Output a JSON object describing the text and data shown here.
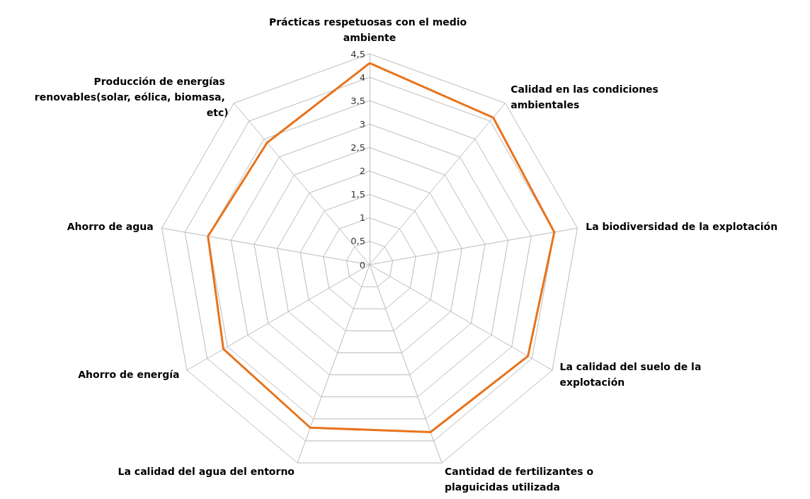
{
  "chart_data": {
    "type": "radar",
    "categories": [
      "Prácticas respetuosas con el medio ambiente",
      "Calidad en las condiciones ambientales",
      "La biodiversidad de la explotación",
      "La calidad del suelo de la explotación",
      "Cantidad de fertilizantes o plaguicidas utilizada",
      "La calidad del agua del entorno",
      "Ahorro de energía",
      "Ahorro de agua",
      "Producción de energías renovables(solar, eólica, biomasa, etc)"
    ],
    "series": [
      {
        "color": "#e8731c",
        "values": [
          4.3,
          4.1,
          4.0,
          3.9,
          3.8,
          3.7,
          3.6,
          3.5,
          3.4
        ]
      }
    ],
    "ylim": [
      0,
      4.5
    ],
    "yticks": [
      0,
      {
        "value": 0.5,
        "label": "0,5"
      },
      1,
      {
        "value": 1.5,
        "label": "1,5"
      },
      2,
      {
        "value": 2.5,
        "label": "2,5"
      },
      3,
      {
        "value": 3.5,
        "label": "3,5"
      },
      4,
      {
        "value": 4.5,
        "label": "4,5"
      }
    ],
    "grid": true,
    "marker": "none"
  }
}
